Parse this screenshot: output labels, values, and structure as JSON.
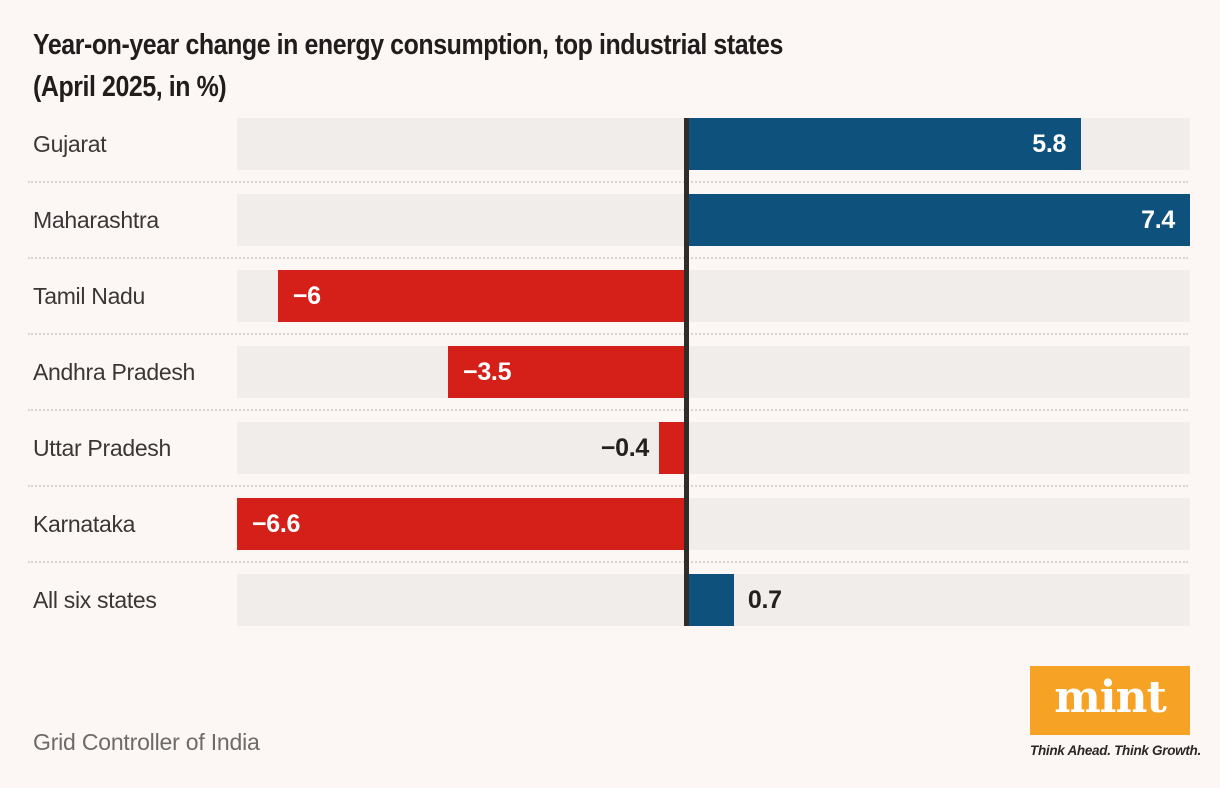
{
  "title": {
    "line1": "Year-on-year change in energy consumption, top industrial states",
    "line2": "(April 2025, in %)"
  },
  "source": {
    "text": "Grid Controller of India"
  },
  "logo": {
    "text": "mint",
    "tagline": "Think Ahead. Think Growth.",
    "orange": "#F6A224"
  },
  "colors": {
    "positive_bar": "#0E517D",
    "negative_bar": "#D42019",
    "zero_line": "#2F2C29",
    "track": "#F1EDEB",
    "background": "#FCF7F5"
  },
  "chart_data": {
    "type": "bar",
    "orientation": "horizontal",
    "title": "Year-on-year change in energy consumption, top industrial states (April 2025, in %)",
    "categories": [
      "Gujarat",
      "Maharashtra",
      "Tamil Nadu",
      "Andhra Pradesh",
      "Uttar Pradesh",
      "Karnataka",
      "All six states"
    ],
    "values": [
      5.8,
      7.4,
      -6,
      -3.5,
      -0.4,
      -6.6,
      0.7
    ],
    "labels": [
      "5.8",
      "7.4",
      "−6",
      "−3.5",
      "−0.4",
      "−6.6",
      "0.7"
    ],
    "xlim": [
      -6.6,
      7.4
    ],
    "xlabel": "",
    "ylabel": "",
    "grid": false,
    "legend": false,
    "value_label_rule": "inside bar when bar is wide enough, otherwise outside next to zero line"
  }
}
